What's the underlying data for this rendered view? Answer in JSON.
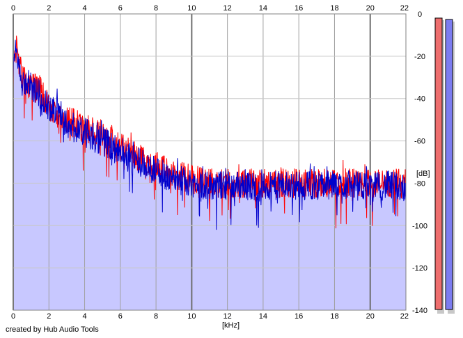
{
  "chart_data": {
    "type": "area",
    "xlabel": "[kHz]",
    "ylabel": "[dB]",
    "xlim": [
      0,
      22
    ],
    "ylim": [
      -140,
      0
    ],
    "x_ticks": [
      0,
      2,
      4,
      6,
      8,
      10,
      12,
      14,
      16,
      18,
      20,
      22
    ],
    "y_ticks": [
      0,
      -20,
      -40,
      -60,
      -80,
      -100,
      -120,
      -140
    ],
    "y_tick_labels": [
      "0",
      "-20",
      "-40",
      "-60",
      "-80",
      "-100",
      "-120",
      "-140"
    ],
    "grid": true,
    "series": [
      {
        "color": "#ff0000",
        "x": [
          0,
          0.1,
          0.3,
          0.5,
          1,
          1.5,
          2,
          2.5,
          3,
          4,
          5,
          6,
          7,
          8,
          9,
          10,
          11,
          12,
          13,
          14,
          15,
          16,
          17,
          18,
          19,
          20,
          21,
          22
        ],
        "values": [
          -30,
          -14,
          -22,
          -30,
          -34,
          -36,
          -44,
          -48,
          -50,
          -54,
          -57,
          -63,
          -68,
          -72,
          -76,
          -78,
          -80,
          -80,
          -80,
          -80,
          -80,
          -80,
          -80,
          -80,
          -80,
          -80,
          -80,
          -80
        ]
      },
      {
        "color": "#0000cc",
        "x": [
          0,
          0.1,
          0.3,
          0.5,
          1,
          1.5,
          2,
          2.5,
          3,
          4,
          5,
          6,
          7,
          8,
          9,
          10,
          11,
          12,
          13,
          14,
          15,
          16,
          17,
          18,
          19,
          20,
          21,
          22
        ],
        "values": [
          -30,
          -14,
          -24,
          -32,
          -34,
          -38,
          -44,
          -46,
          -52,
          -56,
          -60,
          -65,
          -70,
          -74,
          -78,
          -80,
          -81,
          -81,
          -81,
          -82,
          -81,
          -81,
          -81,
          -81,
          -81,
          -82,
          -81,
          -82
        ]
      }
    ]
  },
  "meters": {
    "left_color": "#ee6e6e",
    "right_color": "#7c7cf0"
  },
  "footer": {
    "credit": "created by Hub Audio Tools"
  }
}
